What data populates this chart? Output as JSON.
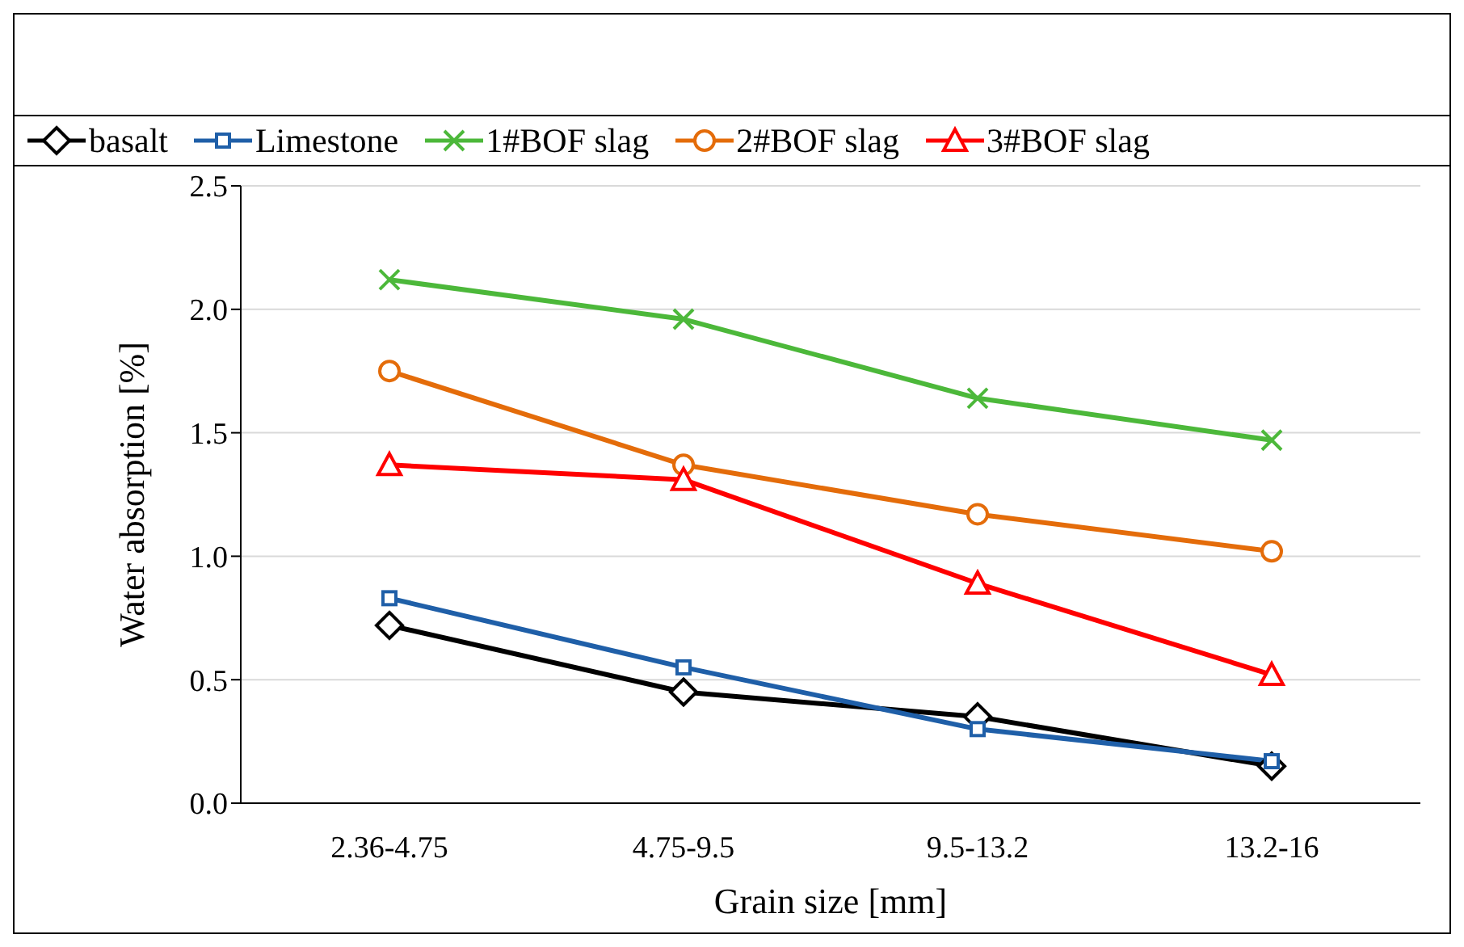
{
  "chart_data": {
    "type": "line",
    "xlabel": "Grain size [mm]",
    "ylabel": "Water absorption [%]",
    "categories": [
      "2.36-4.75",
      "4.75-9.5",
      "9.5-13.2",
      "13.2-16"
    ],
    "series": [
      {
        "name": "basalt",
        "color": "#000000",
        "marker": "diamond",
        "values": [
          0.72,
          0.45,
          0.35,
          0.15
        ]
      },
      {
        "name": "Limestone",
        "color": "#1f5fa8",
        "marker": "square",
        "values": [
          0.83,
          0.55,
          0.3,
          0.17
        ]
      },
      {
        "name": "1#BOF slag",
        "color": "#4cb83a",
        "marker": "cross",
        "values": [
          2.12,
          1.96,
          1.64,
          1.47
        ]
      },
      {
        "name": "2#BOF slag",
        "color": "#e46c0a",
        "marker": "circle",
        "values": [
          1.75,
          1.37,
          1.17,
          1.02
        ]
      },
      {
        "name": "3#BOF slag",
        "color": "#ff0000",
        "marker": "triangle",
        "values": [
          1.37,
          1.31,
          0.89,
          0.52
        ]
      }
    ],
    "ylim": [
      0,
      2.5
    ],
    "yticks": [
      {
        "value": 0,
        "label": "0.0"
      },
      {
        "value": 0.5,
        "label": "0.5"
      },
      {
        "value": 1,
        "label": "1.0"
      },
      {
        "value": 1.5,
        "label": "1.5"
      },
      {
        "value": 2,
        "label": "2.0"
      },
      {
        "value": 2.5,
        "label": "2.5"
      }
    ],
    "grid": "y",
    "legend": "top",
    "line_style": "solid"
  }
}
